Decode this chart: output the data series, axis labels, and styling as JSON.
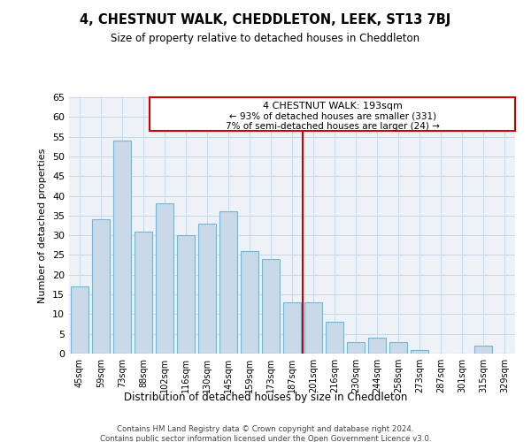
{
  "title": "4, CHESTNUT WALK, CHEDDLETON, LEEK, ST13 7BJ",
  "subtitle": "Size of property relative to detached houses in Cheddleton",
  "xlabel": "Distribution of detached houses by size in Cheddleton",
  "ylabel": "Number of detached properties",
  "categories": [
    "45sqm",
    "59sqm",
    "73sqm",
    "88sqm",
    "102sqm",
    "116sqm",
    "130sqm",
    "145sqm",
    "159sqm",
    "173sqm",
    "187sqm",
    "201sqm",
    "216sqm",
    "230sqm",
    "244sqm",
    "258sqm",
    "273sqm",
    "287sqm",
    "301sqm",
    "315sqm",
    "329sqm"
  ],
  "values": [
    17,
    34,
    54,
    31,
    38,
    30,
    33,
    36,
    26,
    24,
    13,
    13,
    8,
    3,
    4,
    3,
    1,
    0,
    0,
    2,
    0
  ],
  "bar_color": "#c9d9e8",
  "bar_edge_color": "#7ab3d4",
  "vline_color": "#cc0000",
  "vline_index": 10.5,
  "ylim": [
    0,
    65
  ],
  "yticks": [
    0,
    5,
    10,
    15,
    20,
    25,
    30,
    35,
    40,
    45,
    50,
    55,
    60,
    65
  ],
  "annotation_box_color": "#cc0000",
  "grid_color": "#c8d8e8",
  "background_color": "#eef2f7",
  "property_label": "4 CHESTNUT WALK: 193sqm",
  "annotation_line1": "← 93% of detached houses are smaller (331)",
  "annotation_line2": "7% of semi-detached houses are larger (24) →",
  "footer1": "Contains HM Land Registry data © Crown copyright and database right 2024.",
  "footer2": "Contains public sector information licensed under the Open Government Licence v3.0."
}
